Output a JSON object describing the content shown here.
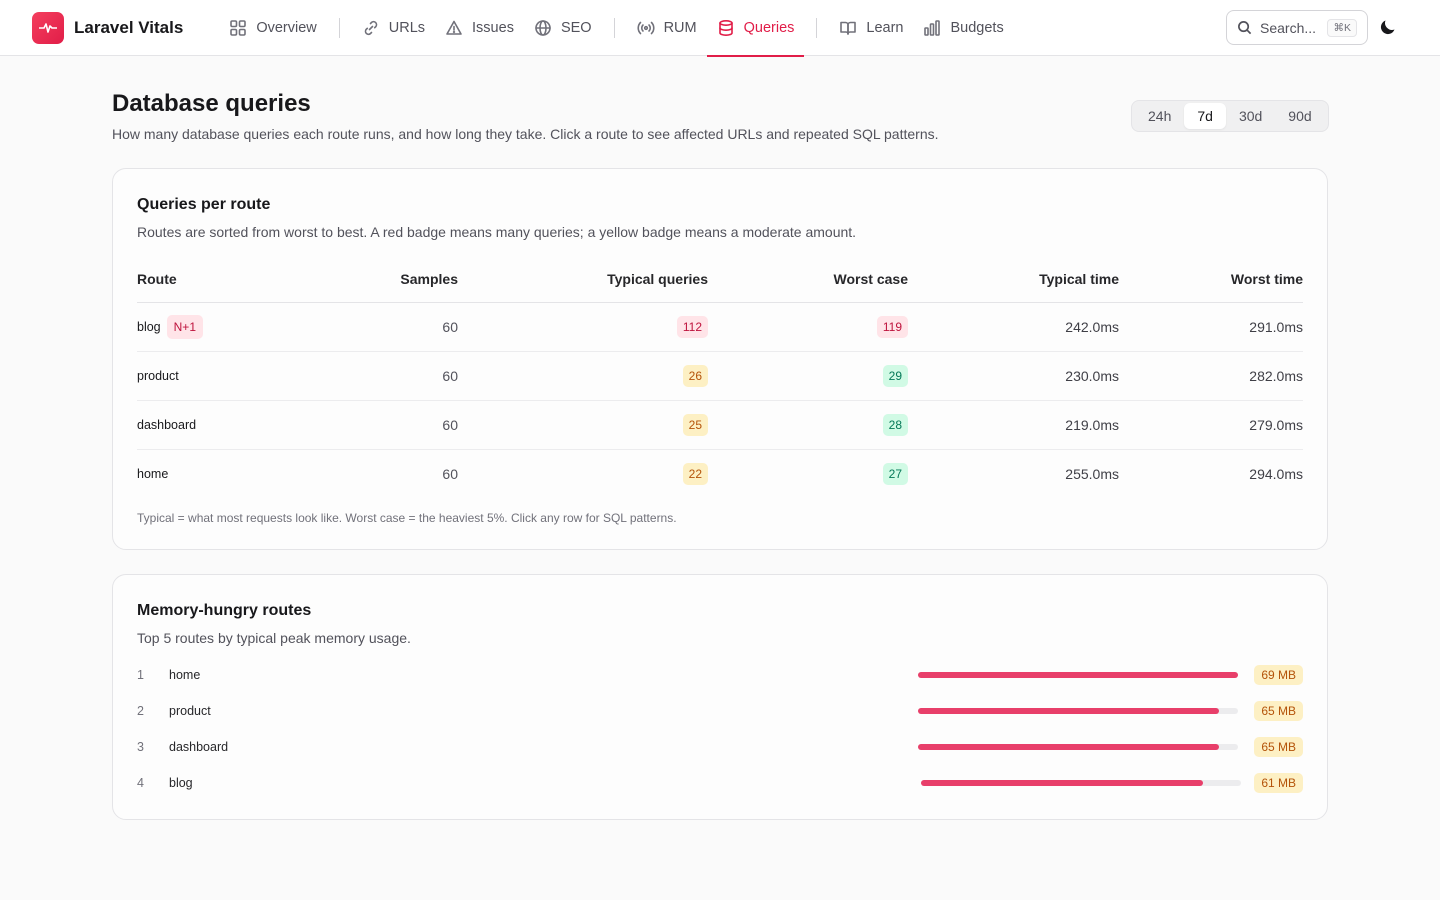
{
  "app": {
    "name": "Laravel Vitals"
  },
  "nav": {
    "items": [
      {
        "id": "overview",
        "label": "Overview",
        "icon": "grid-icon"
      },
      {
        "id": "urls",
        "label": "URLs",
        "icon": "link-icon"
      },
      {
        "id": "issues",
        "label": "Issues",
        "icon": "warning-icon"
      },
      {
        "id": "seo",
        "label": "SEO",
        "icon": "globe-icon"
      },
      {
        "id": "rum",
        "label": "RUM",
        "icon": "broadcast-icon"
      },
      {
        "id": "queries",
        "label": "Queries",
        "icon": "database-icon",
        "active": true
      },
      {
        "id": "learn",
        "label": "Learn",
        "icon": "book-icon"
      },
      {
        "id": "budgets",
        "label": "Budgets",
        "icon": "bar-chart-icon"
      }
    ]
  },
  "search": {
    "placeholder": "Search...",
    "shortcut": "⌘K"
  },
  "page": {
    "title": "Database queries",
    "description": "How many database queries each route runs, and how long they take. Click a route to see affected URLs and repeated SQL patterns."
  },
  "time_range": {
    "options": [
      "24h",
      "7d",
      "30d",
      "90d"
    ],
    "selected": "7d"
  },
  "queries_card": {
    "title": "Queries per route",
    "subtitle": "Routes are sorted from worst to best. A red badge means many queries; a yellow badge means a moderate amount.",
    "columns": [
      "Route",
      "Samples",
      "Typical queries",
      "Worst case",
      "Typical time",
      "Worst time"
    ],
    "rows": [
      {
        "route": "blog",
        "flag": "N+1",
        "samples": "60",
        "typical_queries": "112",
        "typical_level": "red",
        "worst_case": "119",
        "worst_level": "red",
        "typical_time": "242.0ms",
        "worst_time": "291.0ms"
      },
      {
        "route": "product",
        "samples": "60",
        "typical_queries": "26",
        "typical_level": "yellow",
        "worst_case": "29",
        "worst_level": "green",
        "typical_time": "230.0ms",
        "worst_time": "282.0ms"
      },
      {
        "route": "dashboard",
        "samples": "60",
        "typical_queries": "25",
        "typical_level": "yellow",
        "worst_case": "28",
        "worst_level": "green",
        "typical_time": "219.0ms",
        "worst_time": "279.0ms"
      },
      {
        "route": "home",
        "samples": "60",
        "typical_queries": "22",
        "typical_level": "yellow",
        "worst_case": "27",
        "worst_level": "green",
        "typical_time": "255.0ms",
        "worst_time": "294.0ms"
      }
    ],
    "footnote": "Typical = what most requests look like. Worst case = the heaviest 5%. Click any row for SQL patterns."
  },
  "memory_card": {
    "title": "Memory-hungry routes",
    "subtitle": "Top 5 routes by typical peak memory usage.",
    "rows": [
      {
        "rank": "1",
        "route": "home",
        "value": "69 MB",
        "fraction": 1.0
      },
      {
        "rank": "2",
        "route": "product",
        "value": "65 MB",
        "fraction": 0.94
      },
      {
        "rank": "3",
        "route": "dashboard",
        "value": "65 MB",
        "fraction": 0.94
      },
      {
        "rank": "4",
        "route": "blog",
        "value": "61 MB",
        "fraction": 0.88
      }
    ]
  },
  "colors": {
    "accent": "#e11d48",
    "bar": "#e83f6a",
    "red_badge": "#ffe4e8",
    "yellow_badge": "#fdf0c4",
    "green_badge": "#d1fae5"
  }
}
